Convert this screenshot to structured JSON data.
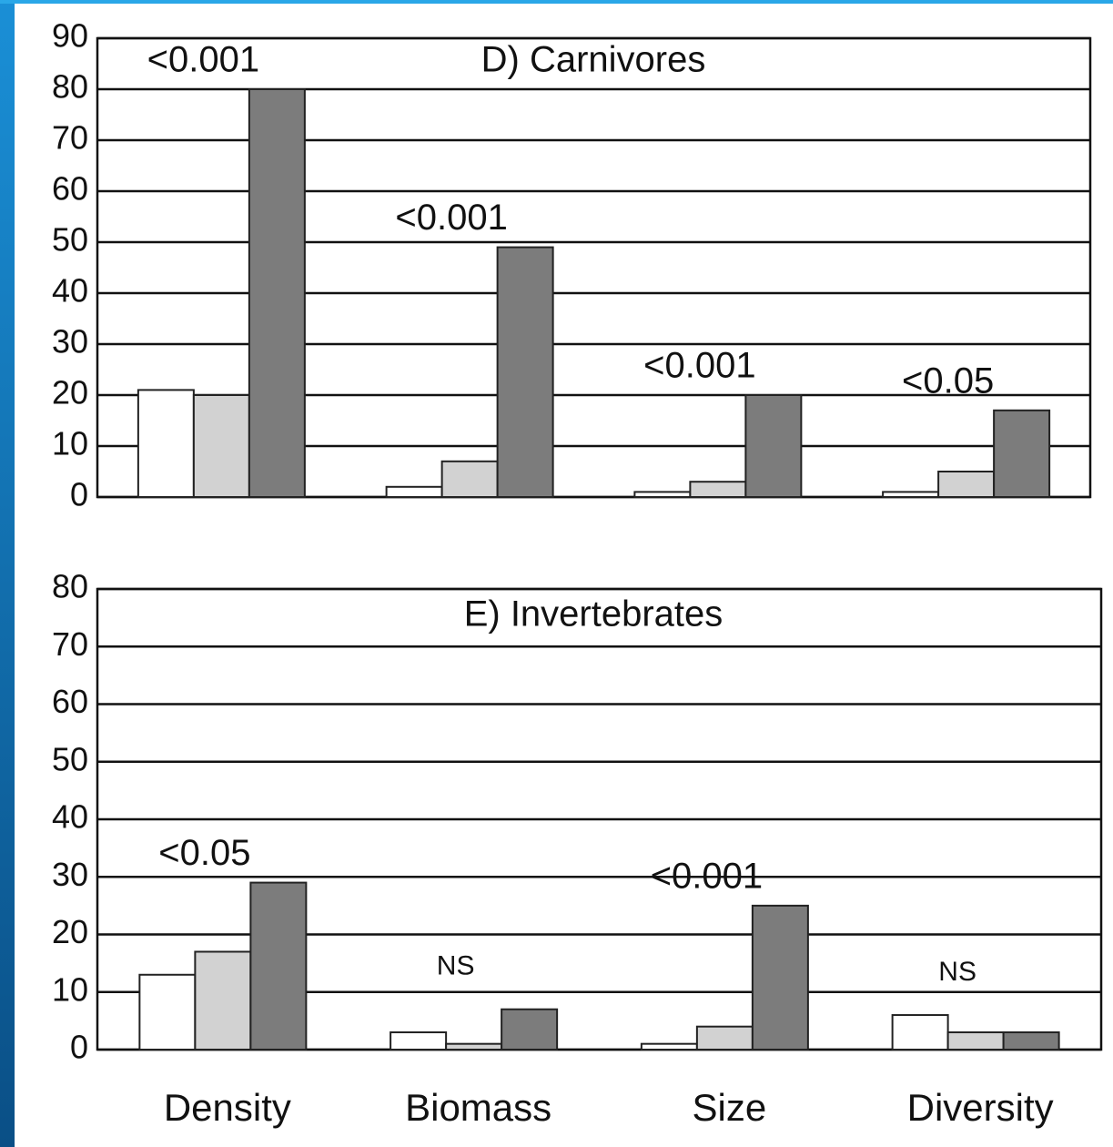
{
  "chart_data": [
    {
      "type": "bar",
      "title": "D) Carnivores",
      "categories": [
        null,
        null,
        null,
        null
      ],
      "series": [
        {
          "color": "#ffffff",
          "values": [
            21,
            2,
            1,
            1
          ]
        },
        {
          "color": "#d2d2d2",
          "values": [
            20,
            7,
            3,
            5
          ]
        },
        {
          "color": "#7c7c7c",
          "values": [
            80,
            49,
            20,
            17
          ]
        }
      ],
      "annotations": [
        "<0.001",
        "<0.001",
        "<0.001",
        "<0.05"
      ],
      "ylim": [
        0,
        90
      ],
      "yticks": [
        0,
        10,
        20,
        30,
        40,
        50,
        60,
        70,
        80,
        90
      ],
      "grid": true
    },
    {
      "type": "bar",
      "title": "E) Invertebrates",
      "categories": [
        "Density",
        "Biomass",
        "Size",
        "Diversity"
      ],
      "series": [
        {
          "color": "#ffffff",
          "values": [
            13,
            3,
            1,
            6
          ]
        },
        {
          "color": "#d2d2d2",
          "values": [
            17,
            1,
            4,
            3
          ]
        },
        {
          "color": "#7c7c7c",
          "values": [
            29,
            7,
            25,
            3
          ]
        }
      ],
      "annotations": [
        "<0.05",
        "NS",
        "<0.001",
        "NS"
      ],
      "ylim": [
        0,
        80
      ],
      "yticks": [
        0,
        10,
        20,
        30,
        40,
        50,
        60,
        70,
        80
      ],
      "grid": true
    }
  ]
}
